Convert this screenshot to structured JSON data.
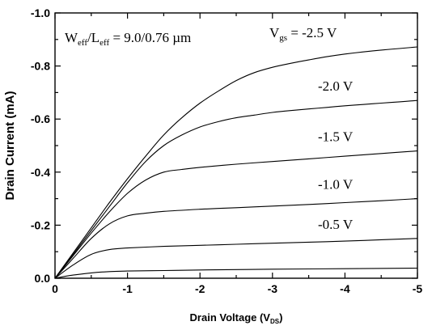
{
  "chart_data": {
    "type": "line",
    "title": "",
    "xlabel": "Drain Voltage (V",
    "xlabel_sub": "DS",
    "xlabel_tail": ")",
    "ylabel": "Drain Current (mA)",
    "xlim": [
      0,
      -5
    ],
    "ylim": [
      0,
      -1.0
    ],
    "xticks": [
      0,
      -1,
      -2,
      -3,
      -4,
      -5
    ],
    "xtick_labels": [
      "0",
      "-1",
      "-2",
      "-3",
      "-4",
      "-5"
    ],
    "yticks": [
      0,
      -0.2,
      -0.4,
      -0.6,
      -0.8,
      -1.0
    ],
    "ytick_labels": [
      "0.0",
      "-0.2",
      "-0.4",
      "-0.6",
      "-0.8",
      "-1.0"
    ],
    "grid": false,
    "legend": "none",
    "annotation": {
      "w_main": "W",
      "w_sub": "eff",
      "slash": "/L",
      "l_sub": "eff",
      "tail": " = 9.0/0.76 µm"
    },
    "vgs_prefix": "V",
    "vgs_sub": "gs",
    "vgs_eq": " = ",
    "series": [
      {
        "label": "-2.5 V",
        "x": [
          0,
          -0.25,
          -0.5,
          -0.75,
          -1.0,
          -1.25,
          -1.5,
          -1.75,
          -2.0,
          -2.25,
          -2.5,
          -2.75,
          -3.0,
          -3.25,
          -3.5,
          -3.75,
          -4.0,
          -4.25,
          -4.5,
          -4.75,
          -5.0
        ],
        "y": [
          0,
          -0.095,
          -0.19,
          -0.285,
          -0.375,
          -0.46,
          -0.54,
          -0.605,
          -0.66,
          -0.705,
          -0.745,
          -0.775,
          -0.795,
          -0.81,
          -0.823,
          -0.835,
          -0.845,
          -0.853,
          -0.86,
          -0.866,
          -0.872
        ]
      },
      {
        "label": "-2.0 V",
        "x": [
          0,
          -0.25,
          -0.5,
          -0.75,
          -1.0,
          -1.25,
          -1.5,
          -1.75,
          -2.0,
          -2.25,
          -2.5,
          -2.75,
          -3.0,
          -3.25,
          -3.5,
          -3.75,
          -4.0,
          -4.25,
          -4.5,
          -4.75,
          -5.0
        ],
        "y": [
          0,
          -0.09,
          -0.18,
          -0.27,
          -0.36,
          -0.44,
          -0.5,
          -0.54,
          -0.57,
          -0.59,
          -0.605,
          -0.615,
          -0.625,
          -0.632,
          -0.638,
          -0.644,
          -0.65,
          -0.655,
          -0.66,
          -0.665,
          -0.67
        ]
      },
      {
        "label": "-1.5 V",
        "x": [
          0,
          -0.25,
          -0.5,
          -0.75,
          -1.0,
          -1.25,
          -1.5,
          -1.75,
          -2.0,
          -2.5,
          -3.0,
          -3.5,
          -4.0,
          -4.5,
          -5.0
        ],
        "y": [
          0,
          -0.085,
          -0.17,
          -0.25,
          -0.32,
          -0.37,
          -0.4,
          -0.41,
          -0.418,
          -0.43,
          -0.44,
          -0.45,
          -0.46,
          -0.47,
          -0.48
        ]
      },
      {
        "label": "-1.0 V",
        "x": [
          0,
          -0.25,
          -0.5,
          -0.75,
          -1.0,
          -1.25,
          -1.5,
          -2.0,
          -2.5,
          -3.0,
          -3.5,
          -4.0,
          -4.5,
          -5.0
        ],
        "y": [
          0,
          -0.075,
          -0.15,
          -0.205,
          -0.235,
          -0.245,
          -0.252,
          -0.26,
          -0.266,
          -0.272,
          -0.278,
          -0.285,
          -0.292,
          -0.3
        ]
      },
      {
        "label": "-0.5 V",
        "x": [
          0,
          -0.25,
          -0.5,
          -0.75,
          -1.0,
          -1.5,
          -2.0,
          -2.5,
          -3.0,
          -3.5,
          -4.0,
          -4.5,
          -5.0
        ],
        "y": [
          0,
          -0.05,
          -0.09,
          -0.108,
          -0.114,
          -0.12,
          -0.124,
          -0.128,
          -0.132,
          -0.136,
          -0.14,
          -0.145,
          -0.15
        ]
      },
      {
        "label": "",
        "x": [
          0,
          -0.25,
          -0.5,
          -0.75,
          -1.0,
          -1.5,
          -2.0,
          -3.0,
          -4.0,
          -5.0
        ],
        "y": [
          0,
          -0.012,
          -0.02,
          -0.025,
          -0.027,
          -0.029,
          -0.031,
          -0.034,
          -0.036,
          -0.038
        ]
      }
    ]
  }
}
